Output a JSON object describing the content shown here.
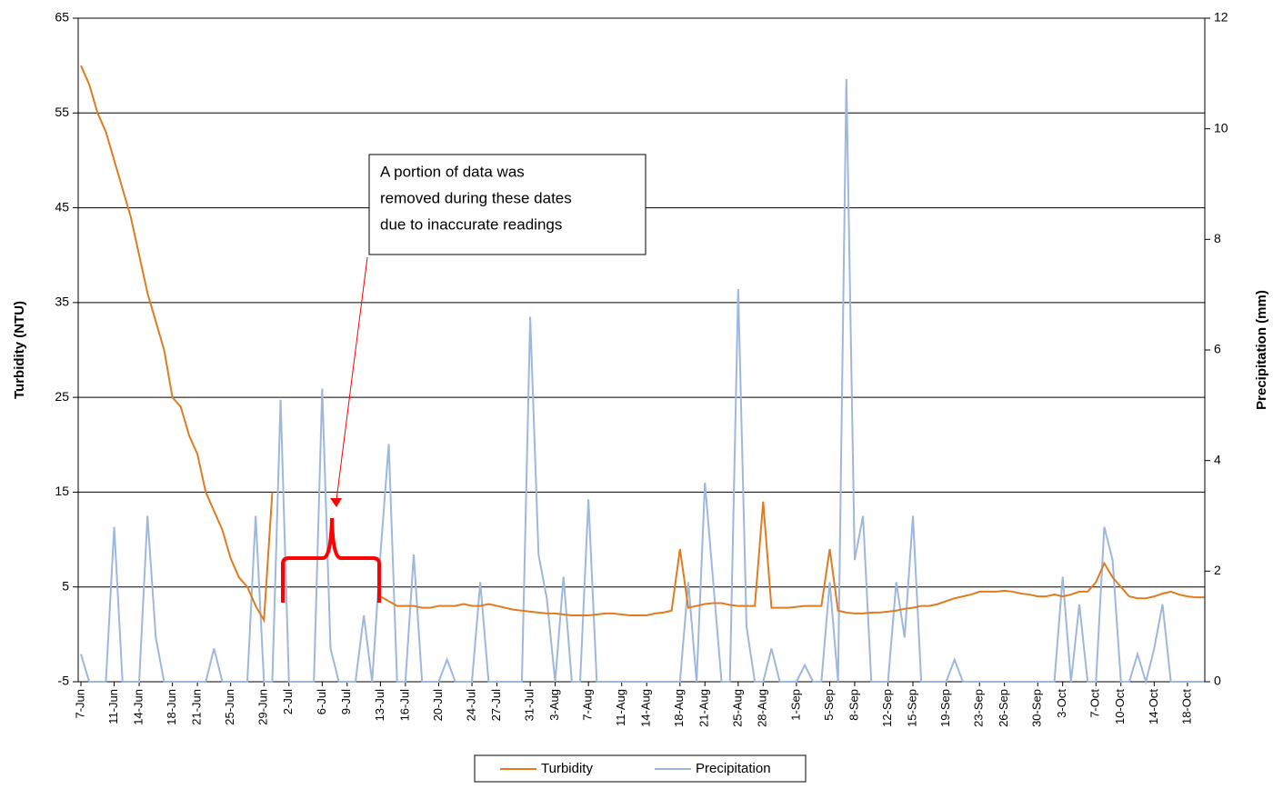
{
  "chart_data": {
    "type": "line",
    "y_label": "Turbidity (NTU)",
    "y2_label": "Precipitation (mm)",
    "annotation": [
      "A portion of data was",
      "removed during these dates",
      "due to inaccurate readings"
    ],
    "categories": [
      "7-Jun",
      null,
      null,
      null,
      "11-Jun",
      null,
      null,
      "14-Jun",
      null,
      null,
      null,
      "18-Jun",
      null,
      null,
      "21-Jun",
      null,
      null,
      null,
      "25-Jun",
      null,
      null,
      null,
      "29-Jun",
      null,
      null,
      "2-Jul",
      null,
      null,
      null,
      "6-Jul",
      null,
      null,
      "9-Jul",
      null,
      null,
      null,
      "13-Jul",
      null,
      null,
      "16-Jul",
      null,
      null,
      null,
      "20-Jul",
      null,
      null,
      null,
      "24-Jul",
      null,
      null,
      "27-Jul",
      null,
      null,
      null,
      "31-Jul",
      null,
      null,
      "3-Aug",
      null,
      null,
      null,
      "7-Aug",
      null,
      null,
      null,
      "11-Aug",
      null,
      null,
      "14-Aug",
      null,
      null,
      null,
      "18-Aug",
      null,
      null,
      "21-Aug",
      null,
      null,
      null,
      "25-Aug",
      null,
      null,
      "28-Aug",
      null,
      null,
      null,
      "1-Sep",
      null,
      null,
      null,
      "5-Sep",
      null,
      null,
      "8-Sep",
      null,
      null,
      null,
      "12-Sep",
      null,
      null,
      "15-Sep",
      null,
      null,
      null,
      "19-Sep",
      null,
      null,
      null,
      "23-Sep",
      null,
      null,
      "26-Sep",
      null,
      null,
      null,
      "30-Sep",
      null,
      null,
      "3-Oct",
      null,
      null,
      null,
      "7-Oct",
      null,
      null,
      "10-Oct",
      null,
      null,
      null,
      "14-Oct",
      null,
      null,
      null,
      "18-Oct",
      null,
      null
    ],
    "series": [
      {
        "name": "Turbidity",
        "color": "#e07b20",
        "axis": "y",
        "values": [
          60,
          58,
          55,
          53,
          50,
          47,
          44,
          40,
          36,
          33,
          30,
          25,
          24,
          21,
          19,
          15,
          13,
          11,
          8,
          6,
          5,
          3,
          1.5,
          15,
          null,
          null,
          null,
          null,
          null,
          null,
          null,
          null,
          null,
          null,
          null,
          null,
          4,
          3.5,
          3,
          3,
          3,
          2.8,
          2.8,
          3,
          3,
          3,
          3.2,
          3,
          3,
          3.2,
          3,
          2.8,
          2.6,
          2.5,
          2.4,
          2.3,
          2.2,
          2.2,
          2.1,
          2,
          2,
          2,
          2.1,
          2.2,
          2.2,
          2.1,
          2,
          2,
          2,
          2.2,
          2.3,
          2.5,
          9,
          2.8,
          3,
          3.2,
          3.3,
          3.3,
          3.1,
          3,
          3,
          3,
          14,
          2.8,
          2.8,
          2.8,
          2.9,
          3,
          3,
          3,
          9,
          2.5,
          2.3,
          2.2,
          2.2,
          2.3,
          2.3,
          2.4,
          2.5,
          2.7,
          2.8,
          3,
          3,
          3.2,
          3.5,
          3.8,
          4,
          4.2,
          4.5,
          4.5,
          4.5,
          4.6,
          4.5,
          4.3,
          4.2,
          4,
          4,
          4.2,
          4,
          4.2,
          4.5,
          4.5,
          5.5,
          7.5,
          6,
          5,
          4,
          3.8,
          3.8,
          4,
          4.3,
          4.5,
          4.2,
          4,
          3.9,
          3.9
        ]
      },
      {
        "name": "Precipitation",
        "color": "#9db8dc",
        "axis": "y2",
        "values": [
          0.5,
          0,
          0,
          0,
          2.8,
          0,
          0,
          0,
          3,
          0.8,
          0,
          0,
          0,
          0,
          0,
          0,
          0.6,
          0,
          0,
          0,
          0,
          3,
          0,
          0,
          5.1,
          0,
          0,
          0,
          0,
          5.3,
          0.6,
          0,
          0,
          0,
          1.2,
          0,
          2.3,
          4.3,
          0,
          0,
          2.3,
          0,
          0,
          0,
          0.4,
          0,
          0,
          0,
          1.8,
          0,
          0,
          0,
          0,
          0,
          6.6,
          2.3,
          1.5,
          0,
          1.9,
          0,
          0,
          3.3,
          0,
          0,
          0,
          0,
          0,
          0,
          0,
          0,
          0,
          0,
          0,
          1.8,
          0,
          3.6,
          1.8,
          0,
          0,
          7.1,
          1,
          0,
          0,
          0.6,
          0,
          0,
          0,
          0.3,
          0,
          0,
          1.8,
          0,
          10.9,
          2.2,
          3,
          0,
          0,
          0,
          1.8,
          0.8,
          3,
          0,
          0,
          0,
          0,
          0.4,
          0,
          0,
          0,
          0,
          0,
          0,
          0,
          0,
          0,
          0,
          0,
          0,
          1.9,
          0,
          1.4,
          0,
          0,
          2.8,
          2.2,
          0,
          0,
          0.5,
          0,
          0.6,
          1.4,
          0,
          0,
          0,
          0,
          0
        ]
      }
    ],
    "ylim": [
      -5,
      65
    ],
    "yticks": [
      -5,
      5,
      15,
      25,
      35,
      45,
      55,
      65
    ],
    "y2lim": [
      0,
      12
    ],
    "y2ticks": [
      0,
      2,
      4,
      6,
      8,
      10,
      12
    ],
    "grid": true,
    "legend": "bottom"
  }
}
